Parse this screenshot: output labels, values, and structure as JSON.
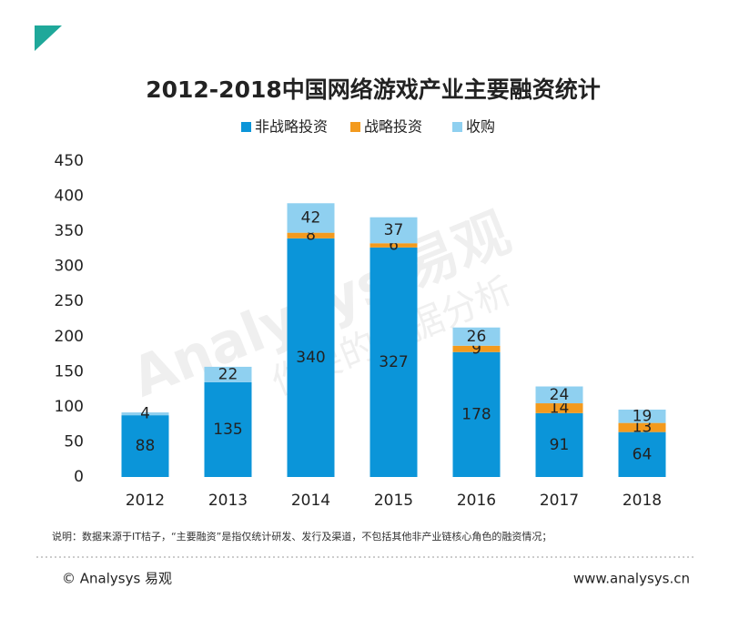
{
  "chart_data": {
    "type": "stacked_bar",
    "title": "2012-2018中国网络游戏产业主要融资统计",
    "categories": [
      "2012",
      "2013",
      "2014",
      "2015",
      "2016",
      "2017",
      "2018"
    ],
    "series": [
      {
        "name": "非战略投资",
        "color": "#0b95d9",
        "values": [
          88,
          135,
          340,
          327,
          178,
          91,
          64
        ]
      },
      {
        "name": "战略投资",
        "color": "#f39a1e",
        "values": [
          null,
          null,
          8,
          6,
          9,
          14,
          13
        ]
      },
      {
        "name": "收购",
        "color": "#8fd0f0",
        "values": [
          4,
          22,
          42,
          37,
          26,
          24,
          19
        ]
      }
    ],
    "ylim": [
      0,
      450
    ],
    "yticks": [
      0,
      50,
      100,
      150,
      200,
      250,
      300,
      350,
      400,
      450
    ],
    "legend": "top",
    "note": "说明：数据来源于IT桔子，“主要融资”是指仅统计研发、发行及渠道，不包括其他非产业链核心角色的融资情况；",
    "copyright": "© Analysys 易观",
    "website": "www.analysys.cn",
    "watermark": "Analysys 易观",
    "watermark_slogan": "你要的数据分析"
  }
}
